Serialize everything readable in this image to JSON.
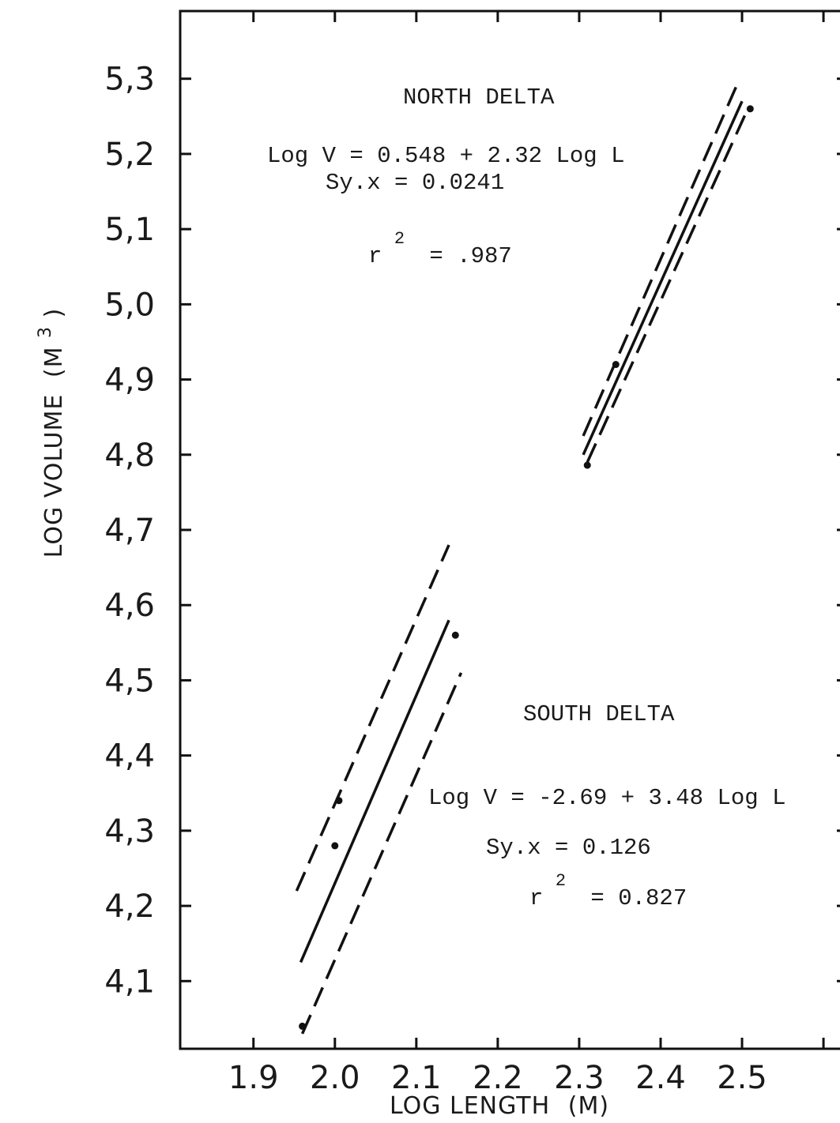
{
  "chart_data": {
    "type": "line",
    "title": "",
    "xlabel": "LOG LENGTH",
    "xlabel_unit": "(M)",
    "ylabel": "LOG VOLUME",
    "ylabel_unit": "(M",
    "ylabel_unit_sup": "3",
    "ylabel_unit_close": ")",
    "xlim": [
      1.81,
      2.63
    ],
    "ylim": [
      4.01,
      5.39
    ],
    "x_ticks": [
      1.9,
      2.0,
      2.1,
      2.2,
      2.3,
      2.4,
      2.5
    ],
    "x_tick_labels": [
      "1.9",
      "2.0",
      "2.1",
      "2.2",
      "2.3",
      "2.4",
      "2.5"
    ],
    "y_ticks": [
      4.1,
      4.2,
      4.3,
      4.4,
      4.5,
      4.6,
      4.7,
      4.8,
      4.9,
      5.0,
      5.1,
      5.2,
      5.3
    ],
    "y_tick_labels": [
      "4,1",
      "4,2",
      "4,3",
      "4,4",
      "4,5",
      "4,6",
      "4,7",
      "4,8",
      "4,9",
      "5,0",
      "5,1",
      "5,2",
      "5,3"
    ],
    "grid": false,
    "groups": [
      {
        "name": "NORTH DELTA",
        "equation": "Log V = 0.548 + 2.32 Log L",
        "syx": "Sy.x = 0.0241",
        "r2_prefix": "r",
        "r2_sup": "2",
        "r2_value": "= .987",
        "fit": {
          "x": [
            2.305,
            2.5
          ],
          "y": [
            4.8,
            5.27
          ]
        },
        "upper_band": {
          "x": [
            2.305,
            2.495
          ],
          "y": [
            4.825,
            5.295
          ]
        },
        "lower_band": {
          "x": [
            2.31,
            2.505
          ],
          "y": [
            4.79,
            5.255
          ]
        },
        "points": {
          "x": [
            2.31,
            2.345,
            2.51
          ],
          "y": [
            4.786,
            4.92,
            5.26
          ]
        }
      },
      {
        "name": "SOUTH DELTA",
        "equation": "Log V = -2.69 + 3.48 Log L",
        "syx": "Sy.x = 0.126",
        "r2_prefix": "r",
        "r2_sup": "2",
        "r2_value": "= 0.827",
        "fit": {
          "x": [
            1.958,
            2.14
          ],
          "y": [
            4.125,
            4.58
          ]
        },
        "upper_band": {
          "x": [
            1.953,
            2.14
          ],
          "y": [
            4.22,
            4.68
          ]
        },
        "lower_band": {
          "x": [
            1.96,
            2.155
          ],
          "y": [
            4.03,
            4.51
          ]
        },
        "points": {
          "x": [
            1.96,
            2.0,
            2.005,
            2.148
          ],
          "y": [
            4.04,
            4.28,
            4.34,
            4.56
          ]
        }
      }
    ]
  }
}
